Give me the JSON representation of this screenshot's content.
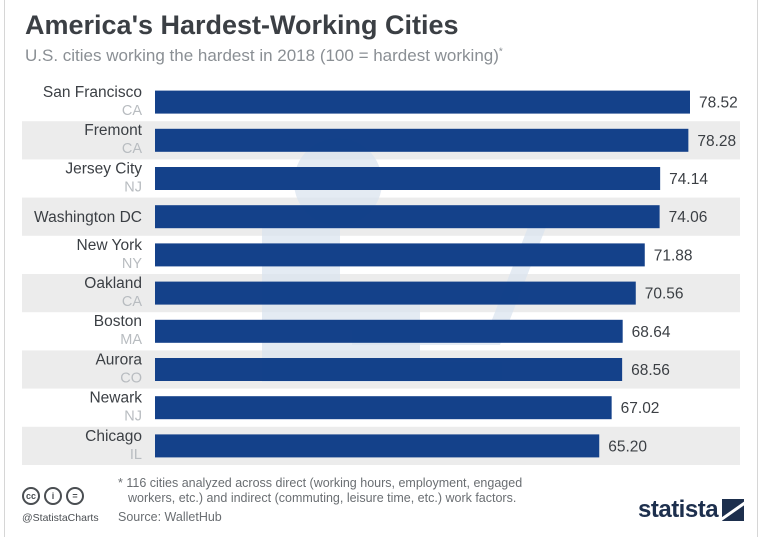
{
  "title": "America's Hardest-Working Cities",
  "subtitle": "U.S. cities working the hardest in 2018 (100 = hardest working)",
  "subtitle_mark": "*",
  "footnote_line1": "* 116 cities analyzed across direct (working hours, employment, engaged",
  "footnote_line2": "workers, etc.) and indirect (commuting, leisure time, etc.) work factors.",
  "source": "Source: WalletHub",
  "handle": "@StatistaCharts",
  "brand": "statista",
  "license_icons": [
    "cc",
    "i",
    "="
  ],
  "colors": {
    "bar": "#0c3b86",
    "stripe": "#ececec",
    "label": "#3b3f44",
    "state": "#b8bcc0",
    "value": "#3b3f44",
    "watermark": "#dbe4ef"
  },
  "chart_data": {
    "type": "bar",
    "orientation": "horizontal",
    "categories": [
      "San Francisco",
      "Fremont",
      "Jersey City",
      "Washington DC",
      "New York",
      "Oakland",
      "Boston",
      "Aurora",
      "Newark",
      "Chicago"
    ],
    "states": [
      "CA",
      "CA",
      "NJ",
      "",
      "NY",
      "CA",
      "MA",
      "CO",
      "NJ",
      "IL"
    ],
    "values": [
      78.52,
      78.28,
      74.14,
      74.06,
      71.88,
      70.56,
      68.64,
      68.56,
      67.02,
      65.2
    ],
    "value_labels": [
      "78.52",
      "78.28",
      "74.14",
      "74.06",
      "71.88",
      "70.56",
      "68.64",
      "68.56",
      "67.02",
      "65.20"
    ],
    "xlim": [
      0,
      78.52
    ],
    "grid": false,
    "legend": "none"
  }
}
